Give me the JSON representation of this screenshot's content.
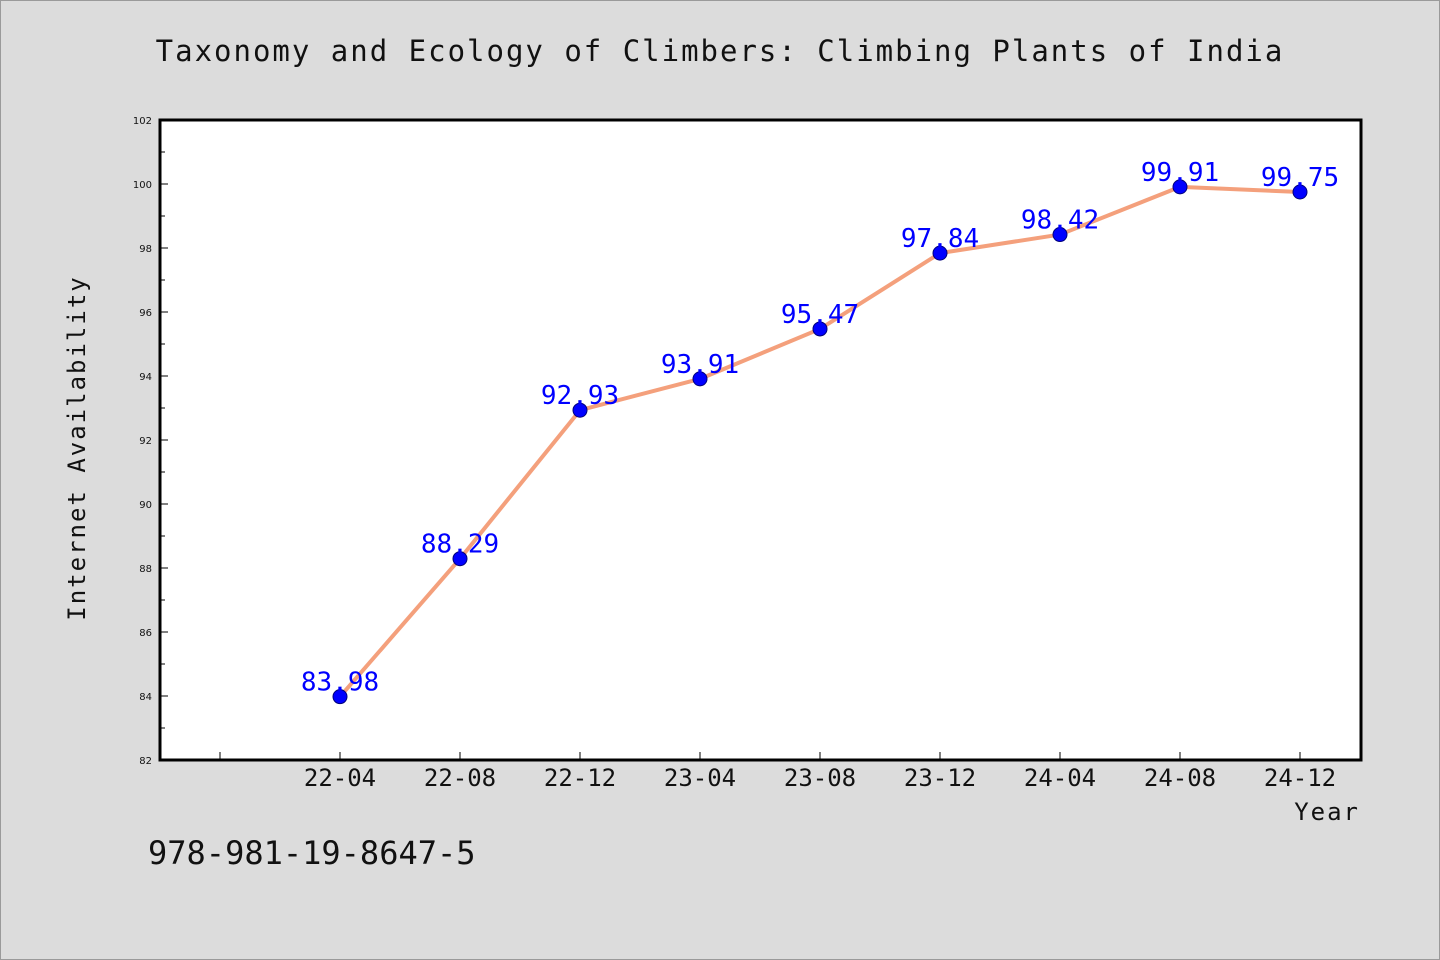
{
  "page": {
    "isbn_text": "978-981-19-8647-5"
  },
  "chart_data": {
    "type": "line",
    "title": "Taxonomy and Ecology of Climbers: Climbing Plants of India",
    "xlabel": "Year",
    "ylabel": "Internet Availability",
    "categories": [
      "22-04",
      "22-08",
      "22-12",
      "23-04",
      "23-08",
      "23-12",
      "24-04",
      "24-08",
      "24-12"
    ],
    "series": [
      {
        "values": [
          83.98,
          88.29,
          92.93,
          93.91,
          95.47,
          97.84,
          98.42,
          99.91,
          99.75
        ],
        "line_color": "#f4a07c",
        "marker_color": "#0000ff"
      }
    ],
    "ylim": [
      82,
      102
    ],
    "yticks": [
      82,
      84,
      86,
      88,
      90,
      92,
      94,
      96,
      98,
      100,
      102
    ],
    "grid": false,
    "legend": "none",
    "data_labels": true
  }
}
